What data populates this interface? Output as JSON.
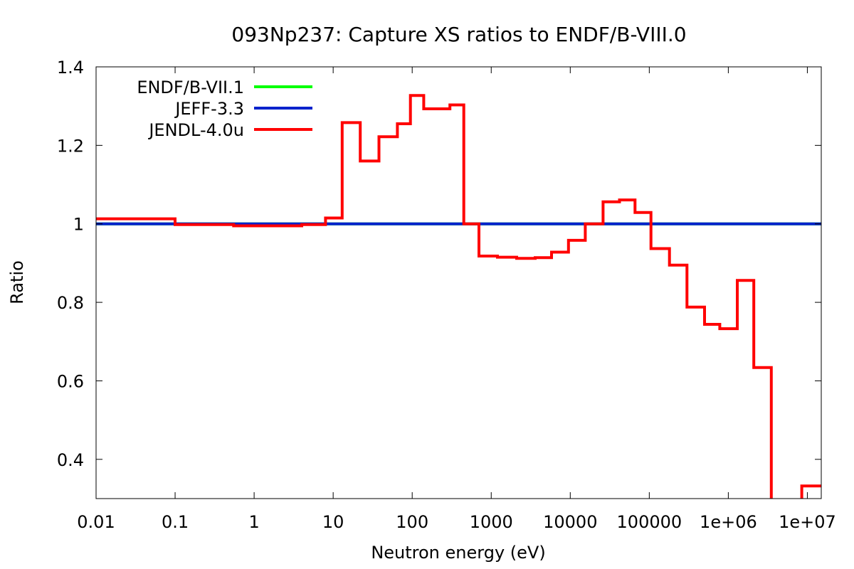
{
  "chart_data": {
    "type": "line",
    "title": "093Np237: Capture XS ratios to ENDF/B-VIII.0",
    "xlabel": "Neutron energy (eV)",
    "ylabel": "Ratio",
    "x_scale": "log",
    "xlim": [
      0.01,
      15000000
    ],
    "ylim": [
      0.3,
      1.4
    ],
    "x_ticks": [
      {
        "value": 0.01,
        "label": "0.01"
      },
      {
        "value": 0.1,
        "label": "0.1"
      },
      {
        "value": 1,
        "label": "1"
      },
      {
        "value": 10,
        "label": "10"
      },
      {
        "value": 100,
        "label": "100"
      },
      {
        "value": 1000,
        "label": "1000"
      },
      {
        "value": 10000,
        "label": "10000"
      },
      {
        "value": 100000,
        "label": "100000"
      },
      {
        "value": 1000000,
        "label": "1e+06"
      },
      {
        "value": 10000000,
        "label": "1e+07"
      }
    ],
    "y_ticks": [
      {
        "value": 0.4,
        "label": "0.4"
      },
      {
        "value": 0.6,
        "label": "0.6"
      },
      {
        "value": 0.8,
        "label": "0.8"
      },
      {
        "value": 1,
        "label": "1"
      },
      {
        "value": 1.2,
        "label": "1.2"
      },
      {
        "value": 1.4,
        "label": "1.4"
      }
    ],
    "grid": false,
    "legend_position": "top-left",
    "series": [
      {
        "name": "ENDF/B-VII.1",
        "color": "#00ff00",
        "step": true,
        "points": [
          [
            0.01,
            1.0
          ],
          [
            15000000,
            1.0
          ]
        ]
      },
      {
        "name": "JEFF-3.3",
        "color": "#0022cc",
        "step": true,
        "points": [
          [
            0.01,
            1.0
          ],
          [
            15000000,
            1.0
          ]
        ]
      },
      {
        "name": "JENDL-4.0u",
        "color": "#ff0000",
        "step": true,
        "points": [
          [
            0.01,
            1.013
          ],
          [
            0.1,
            0.998
          ],
          [
            0.55,
            0.995
          ],
          [
            4.0,
            0.998
          ],
          [
            8.0,
            1.015
          ],
          [
            13.0,
            1.258
          ],
          [
            22.0,
            1.16
          ],
          [
            38.0,
            1.222
          ],
          [
            65.0,
            1.255
          ],
          [
            95.0,
            1.327
          ],
          [
            140.0,
            1.293
          ],
          [
            300.0,
            1.303
          ],
          [
            450.0,
            1.0
          ],
          [
            700.0,
            0.918
          ],
          [
            1200.0,
            0.915
          ],
          [
            2100.0,
            0.912
          ],
          [
            3600.0,
            0.914
          ],
          [
            5800.0,
            0.928
          ],
          [
            9500.0,
            0.958
          ],
          [
            15500.0,
            1.0
          ],
          [
            26000.0,
            1.056
          ],
          [
            42000.0,
            1.061
          ],
          [
            66000.0,
            1.029
          ],
          [
            105000.0,
            0.937
          ],
          [
            180000.0,
            0.895
          ],
          [
            300000.0,
            0.788
          ],
          [
            500000.0,
            0.744
          ],
          [
            780000.0,
            0.733
          ],
          [
            1300000.0,
            0.856
          ],
          [
            2100000.0,
            0.634
          ],
          [
            3500000.0,
            0.2
          ],
          [
            6500000.0,
            0.2
          ],
          [
            8500000.0,
            0.332
          ],
          [
            15000000.0,
            0.332
          ]
        ]
      }
    ]
  }
}
